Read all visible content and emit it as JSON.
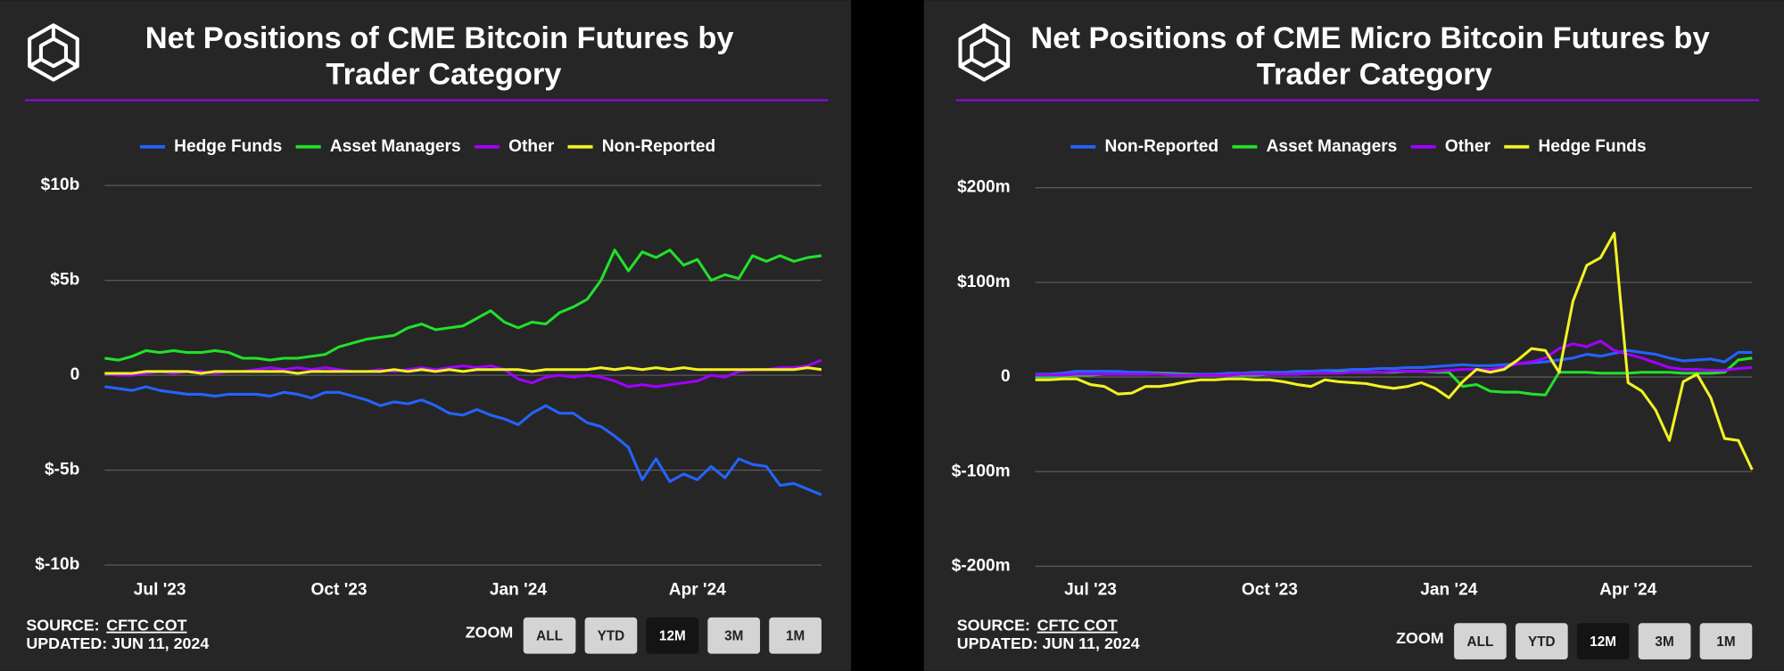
{
  "chart_data": [
    {
      "type": "line",
      "title": "Net Positions of CME Bitcoin Futures by Trader Category",
      "categories": [
        null,
        null,
        null,
        null,
        "Jul '23",
        null,
        null,
        null,
        null,
        null,
        null,
        null,
        null,
        null,
        null,
        null,
        null,
        "Oct '23",
        null,
        null,
        null,
        null,
        null,
        null,
        null,
        null,
        null,
        null,
        null,
        null,
        "Jan '24",
        null,
        null,
        null,
        null,
        null,
        null,
        null,
        null,
        null,
        null,
        null,
        null,
        "Apr '24",
        null,
        null,
        null,
        null,
        null,
        null,
        null,
        null,
        null
      ],
      "series": [
        {
          "name": "Hedge Funds",
          "color": "#2563ff",
          "values": [
            -0.6,
            -0.7,
            -0.8,
            -0.6,
            -0.8,
            -0.9,
            -1.0,
            -1.0,
            -1.1,
            -1.0,
            -1.0,
            -1.0,
            -1.1,
            -0.9,
            -1.0,
            -1.2,
            -0.9,
            -0.9,
            -1.1,
            -1.3,
            -1.6,
            -1.4,
            -1.5,
            -1.3,
            -1.6,
            -2.0,
            -2.1,
            -1.8,
            -2.1,
            -2.3,
            -2.6,
            -2.0,
            -1.6,
            -2.0,
            -2.0,
            -2.5,
            -2.7,
            -3.2,
            -3.8,
            -5.5,
            -4.4,
            -5.6,
            -5.2,
            -5.5,
            -4.8,
            -5.4,
            -4.4,
            -4.7,
            -4.8,
            -5.8,
            -5.7,
            -6.0,
            -6.3
          ]
        },
        {
          "name": "Asset Managers",
          "color": "#22e02a",
          "values": [
            0.9,
            0.8,
            1.0,
            1.3,
            1.2,
            1.3,
            1.2,
            1.2,
            1.3,
            1.2,
            0.9,
            0.9,
            0.8,
            0.9,
            0.9,
            1.0,
            1.1,
            1.5,
            1.7,
            1.9,
            2.0,
            2.1,
            2.5,
            2.7,
            2.4,
            2.5,
            2.6,
            3.0,
            3.4,
            2.8,
            2.5,
            2.8,
            2.7,
            3.3,
            3.6,
            4.0,
            5.0,
            6.6,
            5.5,
            6.5,
            6.2,
            6.6,
            5.8,
            6.1,
            5.0,
            5.3,
            5.1,
            6.3,
            6.0,
            6.3,
            6.0,
            6.2,
            6.3
          ]
        },
        {
          "name": "Other",
          "color": "#a100ff",
          "values": [
            0.1,
            0.0,
            0.0,
            0.1,
            0.2,
            0.1,
            0.2,
            0.2,
            0.1,
            0.2,
            0.2,
            0.3,
            0.4,
            0.3,
            0.4,
            0.3,
            0.4,
            0.3,
            0.2,
            0.2,
            0.3,
            0.2,
            0.3,
            0.4,
            0.3,
            0.4,
            0.5,
            0.4,
            0.5,
            0.3,
            -0.2,
            -0.4,
            -0.1,
            0.0,
            -0.1,
            0.0,
            -0.1,
            -0.3,
            -0.6,
            -0.5,
            -0.6,
            -0.5,
            -0.4,
            -0.3,
            0.0,
            -0.1,
            0.2,
            0.3,
            0.3,
            0.4,
            0.4,
            0.5,
            0.8
          ]
        },
        {
          "name": "Non-Reported",
          "color": "#f2f224",
          "values": [
            0.1,
            0.1,
            0.1,
            0.2,
            0.2,
            0.2,
            0.2,
            0.1,
            0.2,
            0.2,
            0.2,
            0.2,
            0.2,
            0.2,
            0.1,
            0.2,
            0.2,
            0.2,
            0.2,
            0.2,
            0.2,
            0.3,
            0.2,
            0.3,
            0.2,
            0.3,
            0.2,
            0.3,
            0.3,
            0.3,
            0.3,
            0.2,
            0.3,
            0.3,
            0.3,
            0.3,
            0.4,
            0.3,
            0.4,
            0.3,
            0.4,
            0.3,
            0.4,
            0.3,
            0.3,
            0.3,
            0.3,
            0.3,
            0.3,
            0.3,
            0.3,
            0.4,
            0.3
          ]
        }
      ],
      "ylim": [
        -10,
        10
      ],
      "yticks": [
        {
          "value": -10,
          "label": "$-10b"
        },
        {
          "value": -5,
          "label": "$-5b"
        },
        0,
        {
          "value": 5,
          "label": "$5b"
        },
        {
          "value": 10,
          "label": "$10b"
        }
      ],
      "grid": true,
      "source_label": "SOURCE:",
      "source": "CFTC COT",
      "updated": "UPDATED: JUN 11, 2024",
      "zoom_label": "ZOOM",
      "zoom_options": [
        "ALL",
        "YTD",
        "12M",
        "3M",
        "1M"
      ],
      "zoom_selected": "12M"
    },
    {
      "type": "line",
      "title": "Net Positions of CME Micro Bitcoin Futures by Trader Category",
      "categories": [
        null,
        null,
        null,
        null,
        "Jul '23",
        null,
        null,
        null,
        null,
        null,
        null,
        null,
        null,
        null,
        null,
        null,
        null,
        "Oct '23",
        null,
        null,
        null,
        null,
        null,
        null,
        null,
        null,
        null,
        null,
        null,
        null,
        "Jan '24",
        null,
        null,
        null,
        null,
        null,
        null,
        null,
        null,
        null,
        null,
        null,
        null,
        "Apr '24",
        null,
        null,
        null,
        null,
        null,
        null,
        null,
        null,
        null
      ],
      "series": [
        {
          "name": "Non-Reported",
          "color": "#2563ff",
          "values": [
            3,
            3,
            4,
            6,
            6,
            6,
            6,
            5,
            5,
            4,
            4,
            3,
            3,
            3,
            4,
            4,
            5,
            5,
            5,
            6,
            6,
            7,
            7,
            8,
            8,
            9,
            9,
            10,
            10,
            11,
            12,
            13,
            12,
            12,
            13,
            14,
            15,
            16,
            18,
            20,
            24,
            22,
            25,
            28,
            26,
            24,
            20,
            17,
            18,
            19,
            16,
            26,
            26
          ]
        },
        {
          "name": "Asset Managers",
          "color": "#22e02a",
          "values": [
            0,
            0,
            1,
            2,
            2,
            3,
            3,
            3,
            3,
            4,
            3,
            3,
            2,
            2,
            2,
            2,
            2,
            3,
            3,
            3,
            4,
            4,
            5,
            5,
            5,
            5,
            5,
            6,
            6,
            5,
            5,
            -10,
            -8,
            -15,
            -16,
            -16,
            -18,
            -19,
            5,
            5,
            5,
            4,
            4,
            4,
            5,
            5,
            5,
            4,
            4,
            4,
            5,
            18,
            20
          ]
        },
        {
          "name": "Other",
          "color": "#a100ff",
          "values": [
            2,
            2,
            2,
            3,
            3,
            3,
            3,
            3,
            3,
            3,
            2,
            2,
            2,
            2,
            2,
            3,
            3,
            3,
            3,
            3,
            4,
            4,
            4,
            5,
            5,
            5,
            6,
            6,
            6,
            6,
            7,
            8,
            8,
            8,
            10,
            14,
            16,
            20,
            30,
            35,
            32,
            38,
            28,
            24,
            20,
            15,
            10,
            8,
            8,
            7,
            7,
            9,
            10
          ]
        },
        {
          "name": "Hedge Funds",
          "color": "#f2f224",
          "values": [
            -3,
            -3,
            -2,
            -2,
            -8,
            -10,
            -18,
            -17,
            -10,
            -10,
            -8,
            -5,
            -3,
            -3,
            -2,
            -2,
            -3,
            -3,
            -5,
            -8,
            -10,
            -3,
            -5,
            -6,
            -7,
            -10,
            -12,
            -10,
            -6,
            -12,
            -22,
            -5,
            8,
            5,
            8,
            18,
            30,
            28,
            5,
            80,
            118,
            126,
            152,
            -6,
            -15,
            -35,
            -67,
            -5,
            3,
            -22,
            -65,
            -67,
            -98
          ]
        }
      ],
      "ylim": [
        -200,
        200
      ],
      "yticks": [
        {
          "value": -200,
          "label": "$-200m"
        },
        {
          "value": -100,
          "label": "$-100m"
        },
        0,
        {
          "value": 100,
          "label": "$100m"
        },
        {
          "value": 200,
          "label": "$200m"
        }
      ],
      "grid": true,
      "source_label": "SOURCE:",
      "source": "CFTC COT",
      "updated": "UPDATED: JUN 11, 2024",
      "zoom_label": "ZOOM",
      "zoom_options": [
        "ALL",
        "YTD",
        "12M",
        "3M",
        "1M"
      ],
      "zoom_selected": "12M"
    }
  ]
}
